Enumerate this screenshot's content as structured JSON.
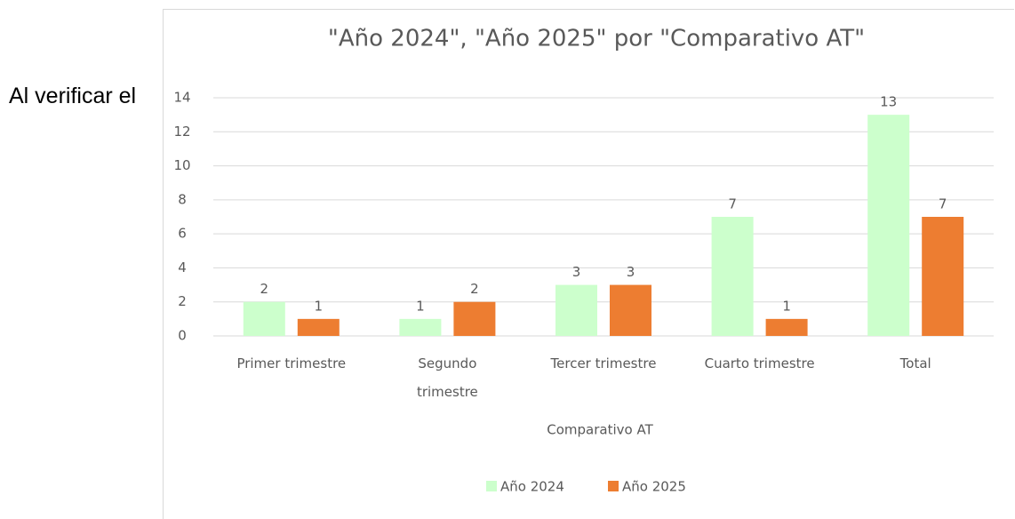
{
  "text": "Al verificar el",
  "chart_data": {
    "type": "bar",
    "title": "\"Año 2024\", \"Año 2025\" por \"Comparativo AT\"",
    "x_label": "Comparativo AT",
    "categories": [
      "Primer trimestre",
      "Segundo trimestre",
      "Tercer trimestre",
      "Cuarto trimestre",
      "Total"
    ],
    "series": [
      {
        "name": "Año 2024",
        "color": "#ccffcc",
        "values": [
          2,
          1,
          3,
          7,
          13
        ]
      },
      {
        "name": "Año 2025",
        "color": "#ed7d31",
        "values": [
          1,
          2,
          3,
          1,
          7
        ]
      }
    ],
    "ylim": [
      0,
      14
    ],
    "yticks": [
      0,
      2,
      4,
      6,
      8,
      10,
      12,
      14
    ],
    "grid": true,
    "legend": "bottom"
  }
}
